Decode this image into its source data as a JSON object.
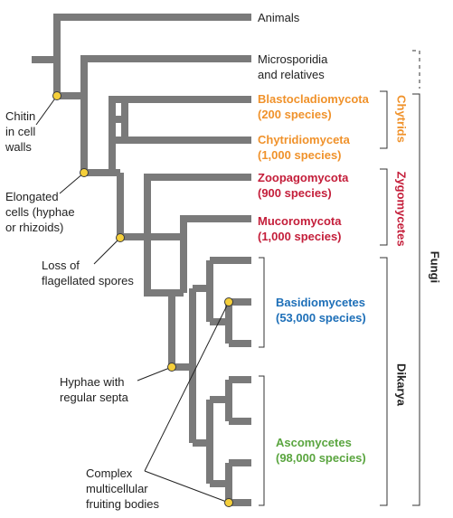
{
  "taxa": [
    {
      "line1": "Animals",
      "line2": "",
      "color": "#222222",
      "bold": false
    },
    {
      "line1": "Microsporidia",
      "line2": "and relatives",
      "color": "#222222",
      "bold": false
    },
    {
      "line1": "Blastocladiomycota",
      "line2": "(200 species)",
      "color": "#f0922b",
      "bold": true
    },
    {
      "line1": "Chytridiomyceta",
      "line2": "(1,000 species)",
      "color": "#f0922b",
      "bold": true
    },
    {
      "line1": "Zoopagomycota",
      "line2": "(900 species)",
      "color": "#c41e3a",
      "bold": true
    },
    {
      "line1": "Mucoromycota",
      "line2": "(1,000 species)",
      "color": "#c41e3a",
      "bold": true
    },
    {
      "line1": "Basidiomycetes",
      "line2": "(53,000 species)",
      "color": "#1d6fb8",
      "bold": true
    },
    {
      "line1": "Ascomycetes",
      "line2": "(98,000 species)",
      "color": "#5aa53f",
      "bold": true
    }
  ],
  "traits": {
    "chitin": [
      "Chitin",
      "in cell",
      "walls"
    ],
    "elongated": [
      "Elongated",
      "cells (hyphae",
      "or rhizoids)"
    ],
    "flagellated": [
      "Loss of",
      "flagellated spores"
    ],
    "septa": [
      "Hyphae with",
      "regular septa"
    ],
    "fruiting": [
      "Complex",
      "multicellular",
      "fruiting bodies"
    ]
  },
  "groups": {
    "chytrids": {
      "label": "Chytrids",
      "color": "#f0922b"
    },
    "zygomycetes": {
      "label": "Zygomycetes",
      "color": "#c41e3a"
    },
    "dikarya": {
      "label": "Dikarya",
      "color": "#222222"
    },
    "fungi": {
      "label": "Fungi",
      "color": "#222222"
    }
  }
}
